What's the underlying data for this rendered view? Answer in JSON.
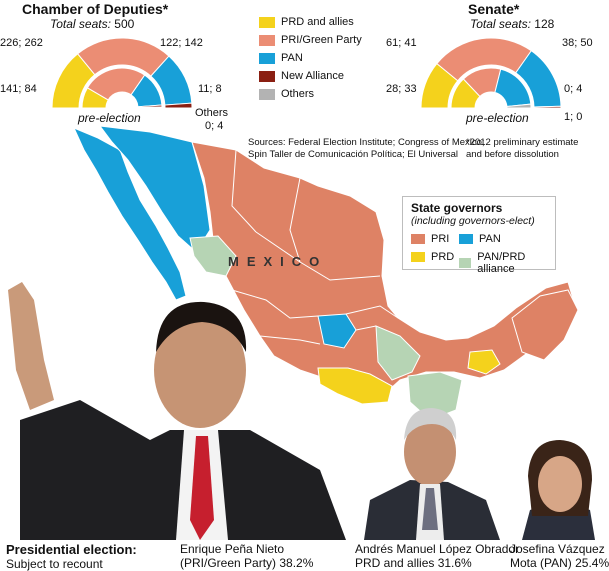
{
  "colors": {
    "prd": "#f4d21c",
    "pri": "#eb8d74",
    "pan": "#18a0d8",
    "new_alliance": "#8a1f12",
    "others": "#b3b3b3",
    "pan_prd": "#b6d4b4",
    "map_pri": "#de8265"
  },
  "legend": {
    "items": [
      {
        "label": "PRD and allies",
        "color": "#f4d21c"
      },
      {
        "label": "PRI/Green Party",
        "color": "#eb8d74"
      },
      {
        "label": "PAN",
        "color": "#18a0d8"
      },
      {
        "label": "New Alliance",
        "color": "#8a1f12"
      },
      {
        "label": "Others",
        "color": "#b3b3b3"
      }
    ]
  },
  "chart_data": [
    {
      "type": "semicircle",
      "title": "Chamber of Deputies*",
      "subtitle_label": "Total seats:",
      "subtitle_value": "500",
      "inner_label": "pre-election",
      "series": [
        {
          "name": "PRD and allies",
          "values": [
            141,
            84
          ],
          "text": "141; 84"
        },
        {
          "name": "PRI/Green Party",
          "values": [
            226,
            262
          ],
          "text": "226; 262"
        },
        {
          "name": "PAN",
          "values": [
            122,
            142
          ],
          "text": "122; 142"
        },
        {
          "name": "New Alliance",
          "values": [
            11,
            8
          ],
          "text": "11; 8"
        },
        {
          "name": "Others",
          "values": [
            0,
            4
          ],
          "text": "0; 4"
        }
      ]
    },
    {
      "type": "semicircle",
      "title": "Senate*",
      "subtitle_label": "Total seats:",
      "subtitle_value": "128",
      "inner_label": "pre-election",
      "series": [
        {
          "name": "PRD and allies",
          "values": [
            28,
            33
          ],
          "text": "28; 33"
        },
        {
          "name": "PRI/Green Party",
          "values": [
            61,
            41
          ],
          "text": "61; 41"
        },
        {
          "name": "PAN",
          "values": [
            38,
            50
          ],
          "text": "38; 50"
        },
        {
          "name": "New Alliance",
          "values": [
            1,
            0
          ],
          "text": "1; 0"
        },
        {
          "name": "Others",
          "values": [
            0,
            4
          ],
          "text": "0; 4"
        }
      ]
    }
  ],
  "others_label": "Others",
  "sources": {
    "line1": "Sources: Federal Election Institute; Congress of Mexico;",
    "line2": "Spin Taller de Comunicación Política; El Universal"
  },
  "footnote": {
    "line1": "*2012 preliminary estimate",
    "line2": "and before dissolution"
  },
  "map": {
    "country_label": "MEXICO",
    "governors": {
      "title": "State governors",
      "subtitle": "(including governors-elect)",
      "items": [
        {
          "label": "PRI",
          "color": "#de8265"
        },
        {
          "label": "PAN",
          "color": "#18a0d8"
        },
        {
          "label": "PRD",
          "color": "#f4d21c"
        },
        {
          "label": "PAN/PRD alliance",
          "color": "#b6d4b4"
        }
      ]
    }
  },
  "election": {
    "title": "Presidential election:",
    "subtitle": "Subject to recount",
    "candidates": [
      {
        "name": "Enrique Peña Nieto",
        "detail": "(PRI/Green Party) 38.2%"
      },
      {
        "name": "Andrés Manuel López Obrador",
        "detail": "PRD and allies 31.6%"
      },
      {
        "name": "Josefina Vázquez",
        "detail": "Mota (PAN) 25.4%"
      }
    ]
  }
}
